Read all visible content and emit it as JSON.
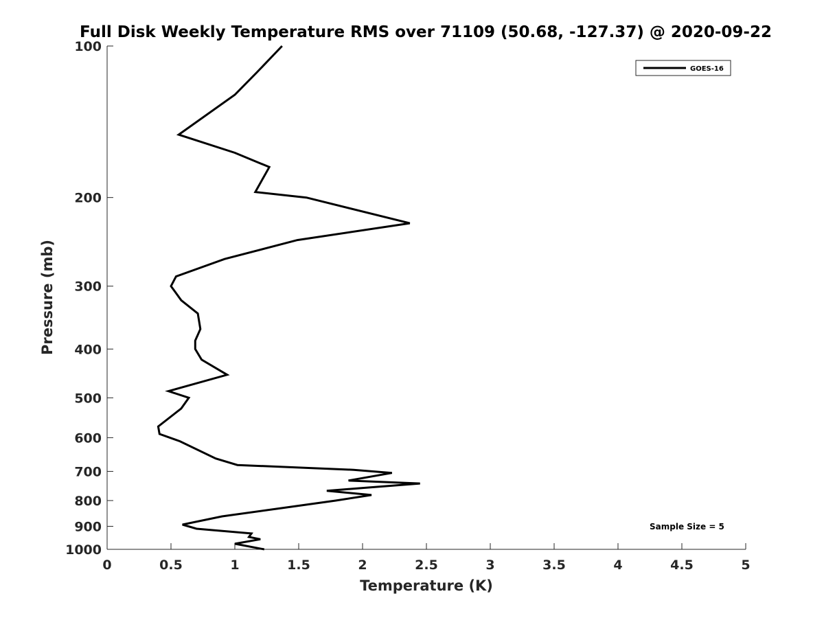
{
  "chart_data": {
    "type": "line",
    "title": "Full Disk Weekly Temperature RMS over 71109 (50.68, -127.37) @ 2020-09-22",
    "xlabel": "Temperature (K)",
    "ylabel": "Pressure (mb)",
    "xlim": [
      0,
      5
    ],
    "ylim": [
      100,
      1000
    ],
    "y_scale": "log",
    "y_reversed": true,
    "grid": false,
    "x_ticks": [
      "0",
      "0.5",
      "1",
      "1.5",
      "2",
      "2.5",
      "3",
      "3.5",
      "4",
      "4.5",
      "5"
    ],
    "x_tick_values": [
      0,
      0.5,
      1,
      1.5,
      2,
      2.5,
      3,
      3.5,
      4,
      4.5,
      5
    ],
    "y_ticks": [
      "100",
      "200",
      "300",
      "400",
      "500",
      "600",
      "700",
      "800",
      "900",
      "1000"
    ],
    "y_tick_values": [
      100,
      200,
      300,
      400,
      500,
      600,
      700,
      800,
      900,
      1000
    ],
    "legend_position": "top-right",
    "annotation": "Sample Size = 5",
    "series": [
      {
        "name": "GOES-16",
        "color": "#000000",
        "points": [
          [
            1.37,
            100
          ],
          [
            1.17,
            113
          ],
          [
            1.0,
            125
          ],
          [
            0.56,
            150
          ],
          [
            1.0,
            163
          ],
          [
            1.27,
            174
          ],
          [
            1.16,
            195
          ],
          [
            1.56,
            200
          ],
          [
            2.37,
            225
          ],
          [
            1.49,
            243
          ],
          [
            0.92,
            265
          ],
          [
            0.54,
            287
          ],
          [
            0.5,
            300
          ],
          [
            0.58,
            320
          ],
          [
            0.71,
            340
          ],
          [
            0.73,
            365
          ],
          [
            0.69,
            385
          ],
          [
            0.69,
            400
          ],
          [
            0.74,
            420
          ],
          [
            0.94,
            450
          ],
          [
            0.48,
            485
          ],
          [
            0.64,
            500
          ],
          [
            0.58,
            525
          ],
          [
            0.4,
            570
          ],
          [
            0.41,
            590
          ],
          [
            0.57,
            610
          ],
          [
            0.85,
            660
          ],
          [
            1.02,
            680
          ],
          [
            1.93,
            695
          ],
          [
            2.23,
            705
          ],
          [
            1.89,
            730
          ],
          [
            2.45,
            740
          ],
          [
            2.01,
            755
          ],
          [
            1.72,
            765
          ],
          [
            2.07,
            780
          ],
          [
            1.79,
            800
          ],
          [
            1.37,
            828
          ],
          [
            0.9,
            860
          ],
          [
            0.59,
            893
          ],
          [
            0.7,
            910
          ],
          [
            1.13,
            930
          ],
          [
            1.11,
            945
          ],
          [
            1.2,
            955
          ],
          [
            1.0,
            975
          ],
          [
            1.23,
            1000
          ]
        ]
      }
    ]
  }
}
